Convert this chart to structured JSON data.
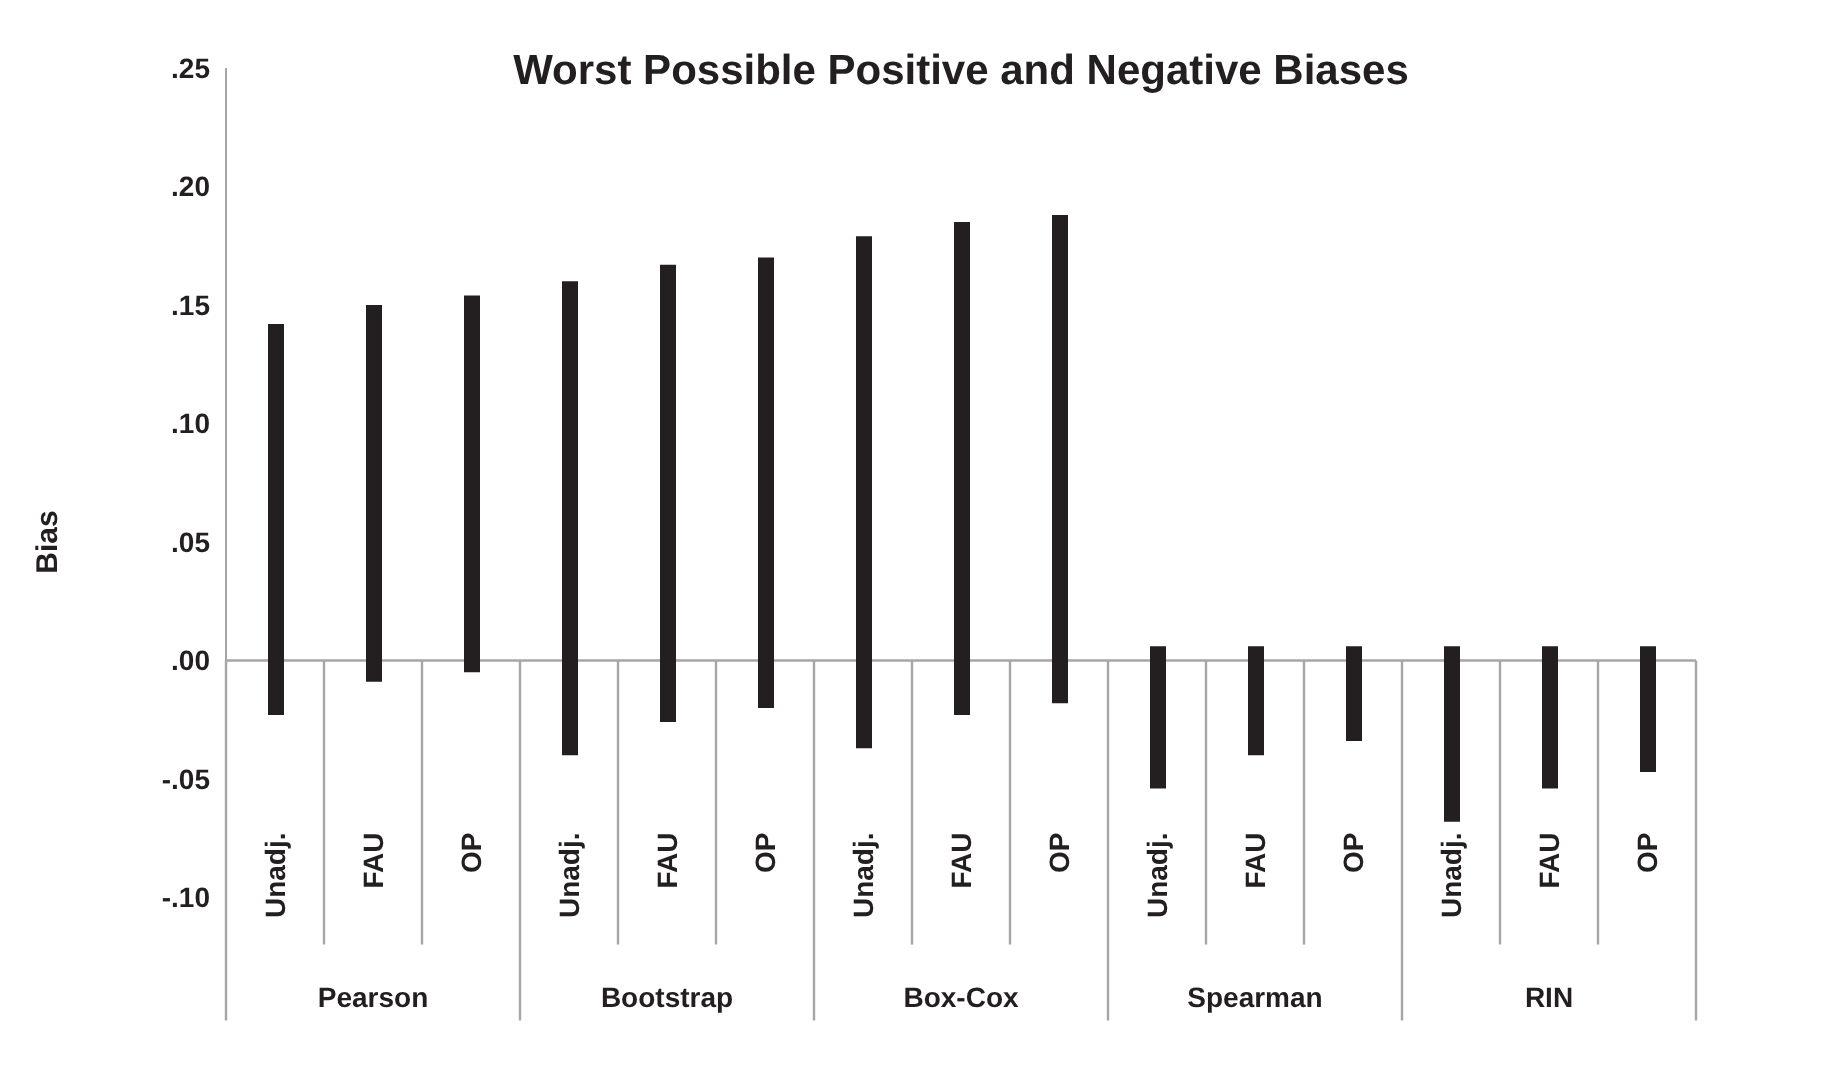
{
  "chart_data": {
    "type": "bar",
    "title": "Worst Possible Positive and Negative Biases",
    "ylabel": "Bias",
    "categories": [
      "Unadj.",
      "FAU",
      "OP",
      "Unadj.",
      "FAU",
      "OP",
      "Unadj.",
      "FAU",
      "OP",
      "Unadj.",
      "FAU",
      "OP",
      "Unadj.",
      "FAU",
      "OP"
    ],
    "base": [
      -0.023,
      -0.009,
      -0.005,
      -0.04,
      -0.026,
      -0.02,
      -0.037,
      -0.023,
      -0.018,
      -0.054,
      -0.04,
      -0.034,
      -0.068,
      -0.054,
      -0.047
    ],
    "values": [
      0.165,
      0.159,
      0.159,
      0.2,
      0.193,
      0.19,
      0.216,
      0.208,
      0.206,
      0.06,
      0.046,
      0.04,
      0.074,
      0.06,
      0.053
    ],
    "color": "#231f20",
    "annotations": [
      "Pearson",
      "Bootstrap",
      "Box-Cox",
      "Spearman",
      "RIN"
    ],
    "ylim": [
      -0.15,
      0.25
    ],
    "yticks": [
      {
        "value": 0.25,
        "label": ".25"
      },
      {
        "value": 0.2,
        "label": ".20"
      },
      {
        "value": 0.15,
        "label": ".15"
      },
      {
        "value": 0.1,
        "label": ".10"
      },
      {
        "value": 0.05,
        "label": ".05"
      },
      {
        "value": 0,
        "label": ".00"
      },
      {
        "value": -0.05,
        "label": "-.05"
      },
      {
        "value": -0.1,
        "label": "-.10"
      }
    ]
  }
}
